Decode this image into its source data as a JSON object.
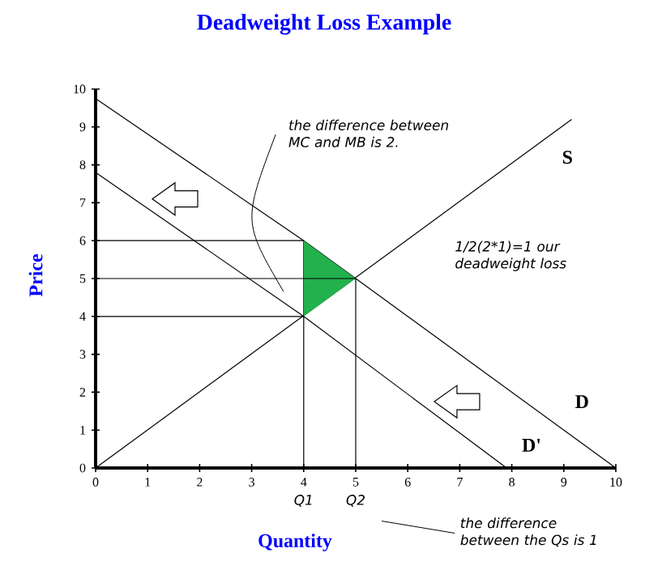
{
  "chart_data": {
    "type": "line",
    "title": "Deadweight Loss Example",
    "xlabel": "Quantity",
    "ylabel": "Price",
    "xlim": [
      0,
      10
    ],
    "ylim": [
      0,
      10
    ],
    "xticks": [
      0,
      1,
      2,
      3,
      4,
      5,
      6,
      7,
      8,
      9,
      10
    ],
    "yticks": [
      0,
      1,
      2,
      3,
      4,
      5,
      6,
      7,
      8,
      9,
      10
    ],
    "series": [
      {
        "name": "S",
        "color": "#000000",
        "x": [
          0,
          9.15
        ],
        "values": [
          0,
          9.2
        ]
      },
      {
        "name": "D",
        "color": "#000000",
        "x": [
          0,
          4,
          5,
          10
        ],
        "values": [
          9.75,
          6,
          5,
          0
        ]
      },
      {
        "name": "D'",
        "color": "#000000",
        "x": [
          0,
          4,
          7.9
        ],
        "values": [
          7.8,
          4,
          0
        ]
      },
      {
        "color": "#000000",
        "x": [
          0,
          4
        ],
        "values": [
          6,
          6
        ]
      },
      {
        "color": "#000000",
        "x": [
          0,
          4
        ],
        "values": [
          4,
          4
        ]
      },
      {
        "color": "#000000",
        "x": [
          4,
          4
        ],
        "values": [
          0,
          6
        ]
      },
      {
        "color": "#000000",
        "x": [
          5,
          5
        ],
        "values": [
          0,
          5
        ]
      },
      {
        "color": "#000000",
        "x": [
          0,
          4,
          5
        ],
        "values": [
          5,
          5,
          5
        ],
        "lower": [
          null,
          4,
          5
        ],
        "upper": [
          null,
          6,
          5
        ]
      }
    ],
    "annotations": [
      "the difference between MC and MB is 2.",
      "1/2(2*1)=1 our deadweight loss",
      "the difference between the Qs is 1",
      {
        "text": "Q1",
        "x": 4,
        "y": 0
      },
      {
        "text": "Q2",
        "x": 5,
        "y": 0
      }
    ]
  }
}
